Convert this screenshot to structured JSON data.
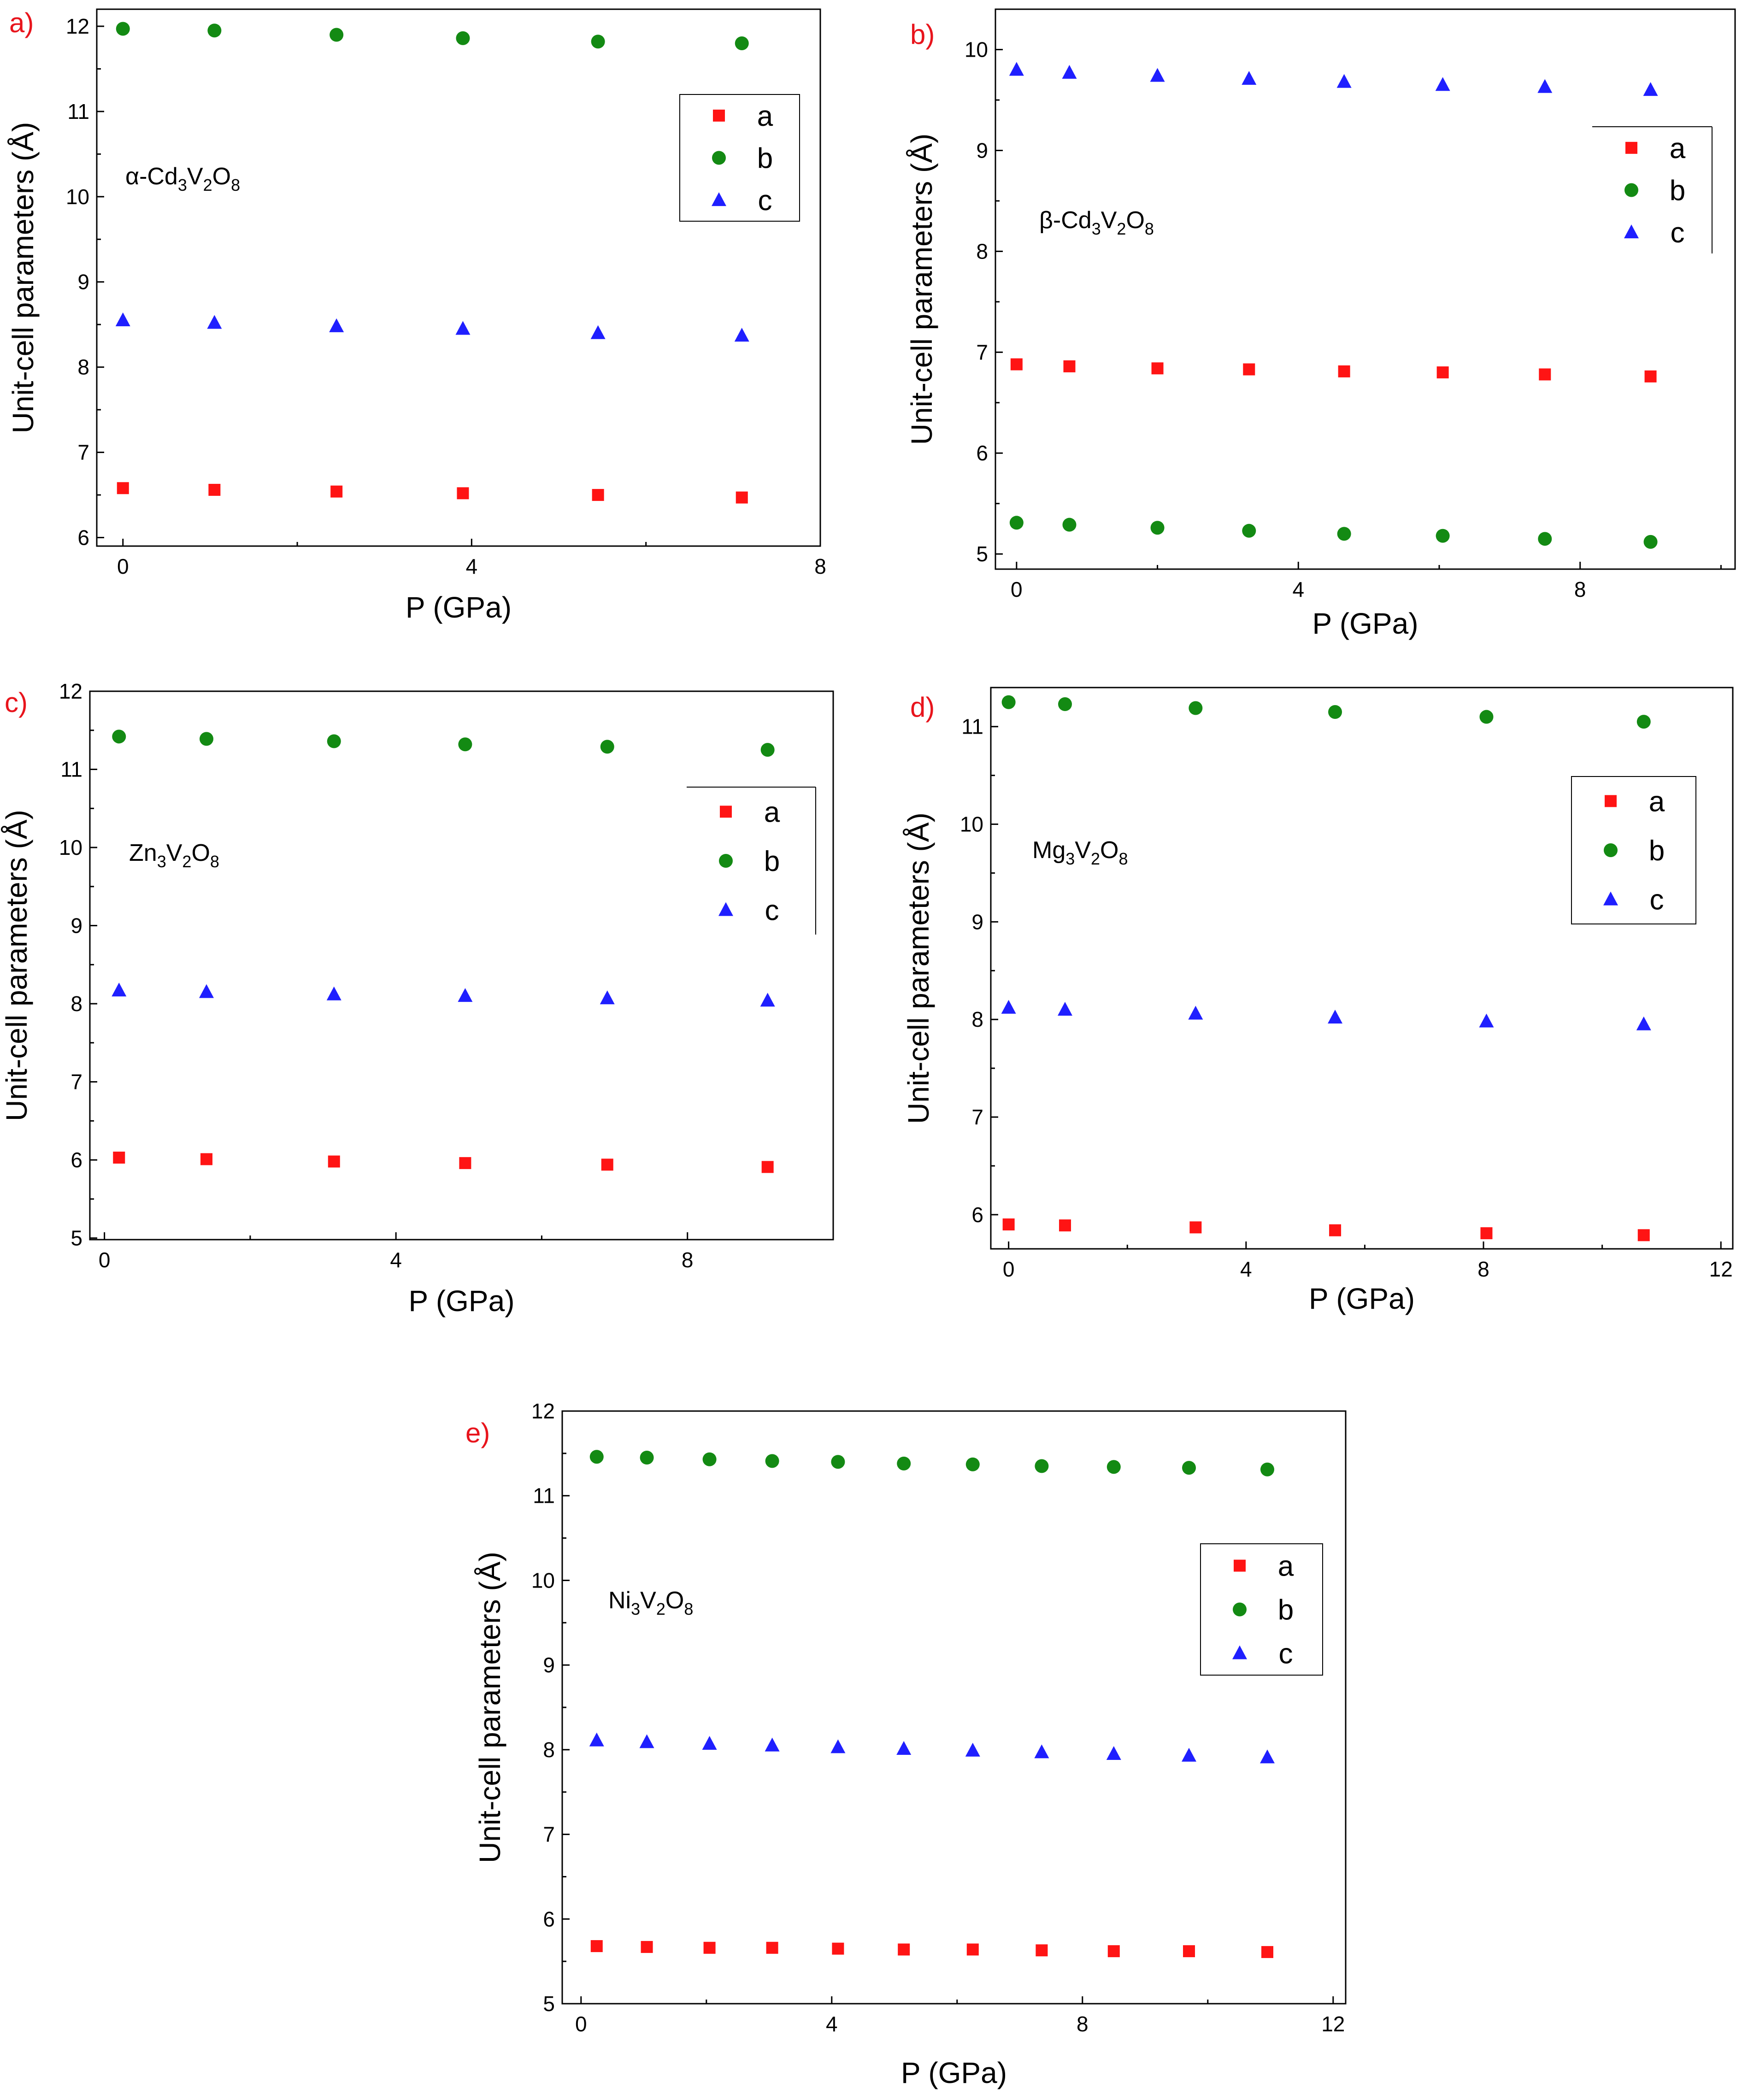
{
  "figure": {
    "panel_letter_color": "#e8141c",
    "series_colors": {
      "a": "#ff1414",
      "b": "#138a13",
      "c": "#1f1fff"
    },
    "series_markers": {
      "a": "square",
      "b": "circle",
      "c": "triangle"
    }
  },
  "chart_data": [
    {
      "id": "a",
      "type": "scatter",
      "panel_label": "a)",
      "compound": {
        "prefix": "α-Cd",
        "s1": "3",
        "mid": "V",
        "s2": "2",
        "end": "O",
        "s3": "8"
      },
      "xlabel": "P (GPa)",
      "ylabel": "Unit-cell parameters (Å)",
      "xlim": [
        -0.3,
        8.0
      ],
      "ylim": [
        5.9,
        12.2
      ],
      "xticks": [
        0,
        4,
        8
      ],
      "yticks": [
        6,
        7,
        8,
        9,
        10,
        11,
        12
      ],
      "legend_placement": "top-right",
      "series": [
        {
          "name": "a",
          "x": [
            0,
            1.05,
            2.45,
            3.9,
            5.45,
            7.1
          ],
          "y": [
            6.58,
            6.56,
            6.54,
            6.52,
            6.5,
            6.47
          ]
        },
        {
          "name": "b",
          "x": [
            0,
            1.05,
            2.45,
            3.9,
            5.45,
            7.1
          ],
          "y": [
            11.97,
            11.95,
            11.9,
            11.86,
            11.82,
            11.8
          ]
        },
        {
          "name": "c",
          "x": [
            0,
            1.05,
            2.45,
            3.9,
            5.45,
            7.1
          ],
          "y": [
            8.55,
            8.52,
            8.48,
            8.45,
            8.4,
            8.37
          ]
        }
      ]
    },
    {
      "id": "b",
      "type": "scatter",
      "panel_label": "b)",
      "compound": {
        "prefix": "β-Cd",
        "s1": "3",
        "mid": "V",
        "s2": "2",
        "end": "O",
        "s3": "8"
      },
      "xlabel": "P (GPa)",
      "ylabel": "Unit-cell parameters (Å)",
      "xlim": [
        -0.3,
        10.2
      ],
      "ylim": [
        4.85,
        10.4
      ],
      "xticks": [
        0,
        4,
        8
      ],
      "yticks": [
        5,
        6,
        7,
        8,
        9,
        10
      ],
      "legend_placement": "top-right",
      "series": [
        {
          "name": "a",
          "x": [
            0,
            0.75,
            2.0,
            3.3,
            4.65,
            6.05,
            7.5,
            9.0
          ],
          "y": [
            6.88,
            6.86,
            6.84,
            6.83,
            6.81,
            6.8,
            6.78,
            6.76
          ]
        },
        {
          "name": "b",
          "x": [
            0,
            0.75,
            2.0,
            3.3,
            4.65,
            6.05,
            7.5,
            9.0
          ],
          "y": [
            5.31,
            5.29,
            5.26,
            5.23,
            5.2,
            5.18,
            5.15,
            5.12
          ]
        },
        {
          "name": "c",
          "x": [
            0,
            0.75,
            2.0,
            3.3,
            4.65,
            6.05,
            7.5,
            9.0
          ],
          "y": [
            9.8,
            9.77,
            9.74,
            9.71,
            9.68,
            9.65,
            9.63,
            9.6
          ]
        }
      ]
    },
    {
      "id": "c",
      "type": "scatter",
      "panel_label": "c)",
      "compound": {
        "prefix": "Zn",
        "s1": "3",
        "mid": "V",
        "s2": "2",
        "end": "O",
        "s3": "8"
      },
      "xlabel": "P (GPa)",
      "ylabel": "Unit-cell parameters (Å)",
      "xlim": [
        -0.2,
        10.0
      ],
      "ylim": [
        4.98,
        12.0
      ],
      "xticks": [
        0,
        4,
        8
      ],
      "yticks": [
        5,
        6,
        7,
        8,
        9,
        10,
        11,
        12
      ],
      "legend_placement": "top-right",
      "series": [
        {
          "name": "a",
          "x": [
            0.2,
            1.4,
            3.15,
            4.95,
            6.9,
            9.1
          ],
          "y": [
            6.03,
            6.01,
            5.98,
            5.96,
            5.94,
            5.91
          ]
        },
        {
          "name": "b",
          "x": [
            0.2,
            1.4,
            3.15,
            4.95,
            6.9,
            9.1
          ],
          "y": [
            11.42,
            11.39,
            11.36,
            11.32,
            11.29,
            11.25
          ]
        },
        {
          "name": "c",
          "x": [
            0.2,
            1.4,
            3.15,
            4.95,
            6.9,
            9.1
          ],
          "y": [
            8.17,
            8.15,
            8.12,
            8.1,
            8.07,
            8.04
          ]
        }
      ]
    },
    {
      "id": "d",
      "type": "scatter",
      "panel_label": "d)",
      "compound": {
        "prefix": "Mg",
        "s1": "3",
        "mid": "V",
        "s2": "2",
        "end": "O",
        "s3": "8"
      },
      "xlabel": "P (GPa)",
      "ylabel": "Unit-cell parameters (Å)",
      "xlim": [
        -0.3,
        12.2
      ],
      "ylim": [
        5.65,
        11.4
      ],
      "xticks": [
        0,
        4,
        8,
        12
      ],
      "yticks": [
        6,
        7,
        8,
        9,
        10,
        11
      ],
      "legend_placement": "top-right",
      "series": [
        {
          "name": "a",
          "x": [
            0,
            0.95,
            3.15,
            5.5,
            8.05,
            10.7
          ],
          "y": [
            5.9,
            5.89,
            5.87,
            5.84,
            5.81,
            5.79
          ]
        },
        {
          "name": "b",
          "x": [
            0,
            0.95,
            3.15,
            5.5,
            8.05,
            10.7
          ],
          "y": [
            11.25,
            11.23,
            11.19,
            11.15,
            11.1,
            11.05
          ]
        },
        {
          "name": "c",
          "x": [
            0,
            0.95,
            3.15,
            5.5,
            8.05,
            10.7
          ],
          "y": [
            8.12,
            8.1,
            8.06,
            8.02,
            7.98,
            7.95
          ]
        }
      ]
    },
    {
      "id": "e",
      "type": "scatter",
      "panel_label": "e)",
      "compound": {
        "prefix": "Ni",
        "s1": "3",
        "mid": "V",
        "s2": "2",
        "end": "O",
        "s3": "8"
      },
      "xlabel": "P (GPa)",
      "ylabel": "Unit-cell parameters (Å)",
      "xlim": [
        -0.3,
        12.2
      ],
      "ylim": [
        5.0,
        12.0
      ],
      "xticks": [
        0,
        4,
        8,
        12
      ],
      "yticks": [
        5,
        6,
        7,
        8,
        9,
        10,
        11,
        12
      ],
      "legend_placement": "top-right",
      "series": [
        {
          "name": "a",
          "x": [
            0.25,
            1.05,
            2.05,
            3.05,
            4.1,
            5.15,
            6.25,
            7.35,
            8.5,
            9.7,
            10.95
          ],
          "y": [
            5.68,
            5.67,
            5.66,
            5.66,
            5.65,
            5.64,
            5.64,
            5.63,
            5.62,
            5.62,
            5.61
          ]
        },
        {
          "name": "b",
          "x": [
            0.25,
            1.05,
            2.05,
            3.05,
            4.1,
            5.15,
            6.25,
            7.35,
            8.5,
            9.7,
            10.95
          ],
          "y": [
            11.46,
            11.45,
            11.43,
            11.41,
            11.4,
            11.38,
            11.37,
            11.35,
            11.34,
            11.33,
            11.31
          ]
        },
        {
          "name": "c",
          "x": [
            0.25,
            1.05,
            2.05,
            3.05,
            4.1,
            5.15,
            6.25,
            7.35,
            8.5,
            9.7,
            10.95
          ],
          "y": [
            8.11,
            8.09,
            8.07,
            8.05,
            8.03,
            8.01,
            7.99,
            7.97,
            7.95,
            7.93,
            7.91
          ]
        }
      ]
    }
  ]
}
